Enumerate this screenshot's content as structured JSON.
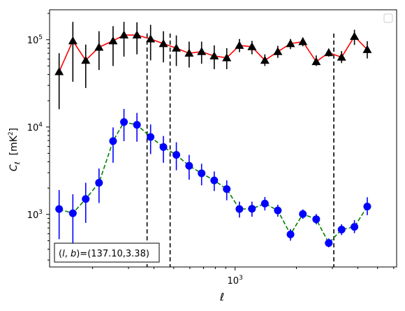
{
  "chart_data": {
    "type": "scatter",
    "xscale": "log",
    "yscale": "log",
    "xlabel": "ℓ",
    "ylabel": "C",
    "ylabel_subscript": "ℓ",
    "ylabel_unit": "[mK",
    "ylabel_unit_sup": "2",
    "ylabel_unit_close": "]",
    "xlim": [
      123,
      6200
    ],
    "ylim": [
      250,
      220000
    ],
    "xticks": [
      {
        "value": 1000,
        "base": "10",
        "exp": "3"
      }
    ],
    "yticks": [
      {
        "value": 1000,
        "base": "10",
        "exp": "3"
      },
      {
        "value": 10000,
        "base": "10",
        "exp": "4"
      },
      {
        "value": 100000,
        "base": "10",
        "exp": "5"
      }
    ],
    "grid": false,
    "legend": {
      "placement": "top-right",
      "entries": []
    },
    "annotation": {
      "text": "(l, b)=(137.10,3.38)",
      "label_prefix": "(",
      "l": "l",
      "comma": ", ",
      "b": "b",
      "suffix": ")=(137.10,3.38)",
      "placement": "bottom-left"
    },
    "vlines": [
      370,
      480,
      3050
    ],
    "series": [
      {
        "style": "triangle markers, solid red line",
        "color": "#000000",
        "line_color": "#ff0000",
        "line_style": "solid",
        "marker": "triangle",
        "points": [
          {
            "x": 137,
            "y": 43000,
            "lo": 16000,
            "hi": 70000
          },
          {
            "x": 160,
            "y": 97000,
            "lo": 33000,
            "hi": 160000
          },
          {
            "x": 185,
            "y": 58000,
            "lo": 28000,
            "hi": 88000
          },
          {
            "x": 215,
            "y": 82000,
            "lo": 45000,
            "hi": 125000
          },
          {
            "x": 252,
            "y": 97000,
            "lo": 50000,
            "hi": 143000
          },
          {
            "x": 285,
            "y": 113000,
            "lo": 64000,
            "hi": 160000
          },
          {
            "x": 330,
            "y": 113000,
            "lo": 68000,
            "hi": 158000
          },
          {
            "x": 385,
            "y": 102000,
            "lo": 58000,
            "hi": 148000
          },
          {
            "x": 445,
            "y": 90000,
            "lo": 55000,
            "hi": 125000
          },
          {
            "x": 515,
            "y": 80000,
            "lo": 50000,
            "hi": 112000
          },
          {
            "x": 595,
            "y": 70000,
            "lo": 48000,
            "hi": 95000
          },
          {
            "x": 685,
            "y": 73000,
            "lo": 53000,
            "hi": 95000
          },
          {
            "x": 790,
            "y": 65000,
            "lo": 46000,
            "hi": 86000
          },
          {
            "x": 910,
            "y": 62000,
            "lo": 46000,
            "hi": 80000
          },
          {
            "x": 1050,
            "y": 86000,
            "lo": 72000,
            "hi": 102000
          },
          {
            "x": 1210,
            "y": 83000,
            "lo": 68000,
            "hi": 97000
          },
          {
            "x": 1400,
            "y": 58000,
            "lo": 50000,
            "hi": 68000
          },
          {
            "x": 1620,
            "y": 73000,
            "lo": 62000,
            "hi": 85000
          },
          {
            "x": 1870,
            "y": 90000,
            "lo": 78000,
            "hi": 102000
          },
          {
            "x": 2150,
            "y": 95000,
            "lo": 84000,
            "hi": 106000
          },
          {
            "x": 2500,
            "y": 56000,
            "lo": 50000,
            "hi": 66000
          },
          {
            "x": 2880,
            "y": 71000,
            "lo": 64000,
            "hi": 79000
          },
          {
            "x": 3330,
            "y": 63000,
            "lo": 54000,
            "hi": 74000
          },
          {
            "x": 3850,
            "y": 109000,
            "lo": 87000,
            "hi": 130000
          },
          {
            "x": 4450,
            "y": 77000,
            "lo": 61000,
            "hi": 96000
          }
        ]
      },
      {
        "style": "circle markers, dashed green line",
        "color": "#0000ff",
        "line_color": "#008000",
        "line_style": "dashed",
        "marker": "circle",
        "points": [
          {
            "x": 137,
            "y": 1150,
            "lo": 520,
            "hi": 1900
          },
          {
            "x": 160,
            "y": 1030,
            "lo": 450,
            "hi": 1700
          },
          {
            "x": 185,
            "y": 1500,
            "lo": 800,
            "hi": 2300
          },
          {
            "x": 215,
            "y": 2300,
            "lo": 1350,
            "hi": 3350
          },
          {
            "x": 252,
            "y": 6900,
            "lo": 3900,
            "hi": 9900
          },
          {
            "x": 285,
            "y": 11400,
            "lo": 6900,
            "hi": 16100
          },
          {
            "x": 330,
            "y": 10600,
            "lo": 6800,
            "hi": 14500
          },
          {
            "x": 385,
            "y": 7700,
            "lo": 4900,
            "hi": 10700
          },
          {
            "x": 445,
            "y": 5900,
            "lo": 3900,
            "hi": 7900
          },
          {
            "x": 515,
            "y": 4800,
            "lo": 3200,
            "hi": 6700
          },
          {
            "x": 595,
            "y": 3600,
            "lo": 2500,
            "hi": 4800
          },
          {
            "x": 685,
            "y": 2950,
            "lo": 2150,
            "hi": 3800
          },
          {
            "x": 790,
            "y": 2450,
            "lo": 1850,
            "hi": 3100
          },
          {
            "x": 910,
            "y": 1950,
            "lo": 1450,
            "hi": 2450
          },
          {
            "x": 1050,
            "y": 1150,
            "lo": 920,
            "hi": 1400
          },
          {
            "x": 1210,
            "y": 1160,
            "lo": 940,
            "hi": 1400
          },
          {
            "x": 1400,
            "y": 1330,
            "lo": 1110,
            "hi": 1580
          },
          {
            "x": 1620,
            "y": 1110,
            "lo": 940,
            "hi": 1290
          },
          {
            "x": 1870,
            "y": 590,
            "lo": 500,
            "hi": 680
          },
          {
            "x": 2150,
            "y": 1010,
            "lo": 890,
            "hi": 1140
          },
          {
            "x": 2500,
            "y": 880,
            "lo": 770,
            "hi": 1010
          },
          {
            "x": 2880,
            "y": 470,
            "lo": 420,
            "hi": 530
          },
          {
            "x": 3330,
            "y": 670,
            "lo": 580,
            "hi": 770
          },
          {
            "x": 3850,
            "y": 720,
            "lo": 610,
            "hi": 860
          },
          {
            "x": 4450,
            "y": 1230,
            "lo": 980,
            "hi": 1570
          }
        ]
      }
    ]
  }
}
